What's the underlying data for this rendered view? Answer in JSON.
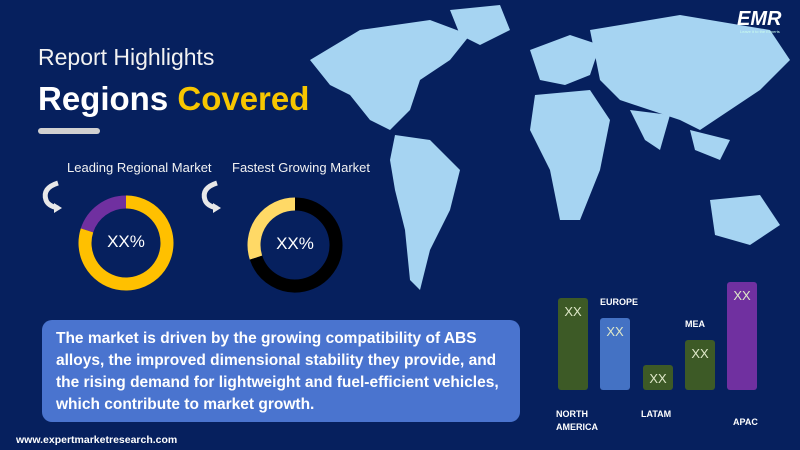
{
  "logo": {
    "text": "EMR",
    "tagline": "Leave it to the Experts"
  },
  "header": {
    "subtitle": "Report Highlights",
    "title_white": "Regions",
    "title_yellow": "Covered"
  },
  "donuts": [
    {
      "label": "Leading Regional Market",
      "value_text": "XX%",
      "segments": [
        {
          "color": "#7030a0",
          "fraction": 0.2
        },
        {
          "color": "#ffc000",
          "fraction": 0.8
        }
      ]
    },
    {
      "label": "Fastest Growing Market",
      "value_text": "XX%",
      "segments": [
        {
          "color": "#ffd966",
          "fraction": 0.3
        },
        {
          "color": "#000000",
          "fraction": 0.7
        }
      ]
    }
  ],
  "description": "The market is driven by the growing compatibility of ABS alloys, the improved dimensional stability they provide, and the rising demand for lightweight and fuel-efficient vehicles, which contribute to market growth.",
  "regions": [
    {
      "name": "NORTH AMERICA",
      "value": "XX",
      "color": "#3d5a26"
    },
    {
      "name": "EUROPE",
      "value": "XX",
      "color": "#4472c4"
    },
    {
      "name": "LATAM",
      "value": "XX",
      "color": "#3d5a26"
    },
    {
      "name": "MEA",
      "value": "XX",
      "color": "#3d5a26"
    },
    {
      "name": "APAC",
      "value": "XX",
      "color": "#7030a0"
    }
  ],
  "footer": {
    "url": "www.expertmarketresearch.com"
  }
}
